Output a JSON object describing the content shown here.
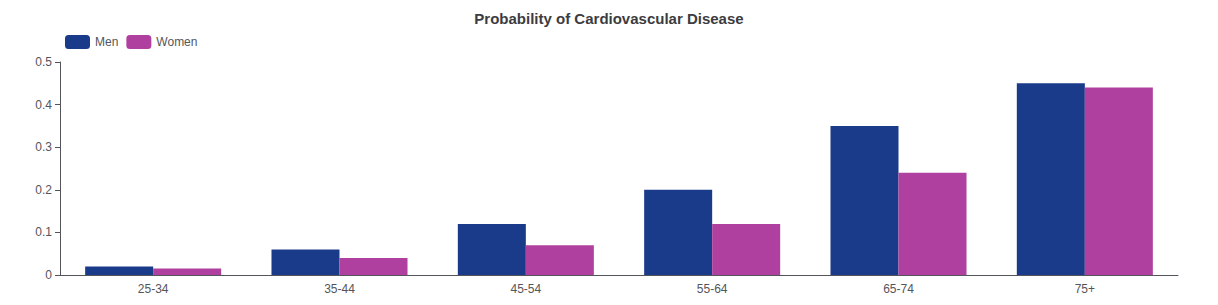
{
  "chart_data": {
    "type": "bar",
    "title": "Probability of Cardiovascular Disease",
    "categories": [
      "25-34",
      "35-44",
      "45-54",
      "55-64",
      "65-74",
      "75+"
    ],
    "series": [
      {
        "name": "Men",
        "color": "#1a3a8a",
        "values": [
          0.02,
          0.06,
          0.12,
          0.2,
          0.35,
          0.45
        ]
      },
      {
        "name": "Women",
        "color": "#b040a0",
        "values": [
          0.015,
          0.04,
          0.07,
          0.12,
          0.24,
          0.44
        ]
      }
    ],
    "ylim": [
      0,
      0.5
    ],
    "yticks": [
      0,
      0.1,
      0.2,
      0.3,
      0.4,
      0.5
    ],
    "grid": false,
    "legend": "upper left"
  }
}
